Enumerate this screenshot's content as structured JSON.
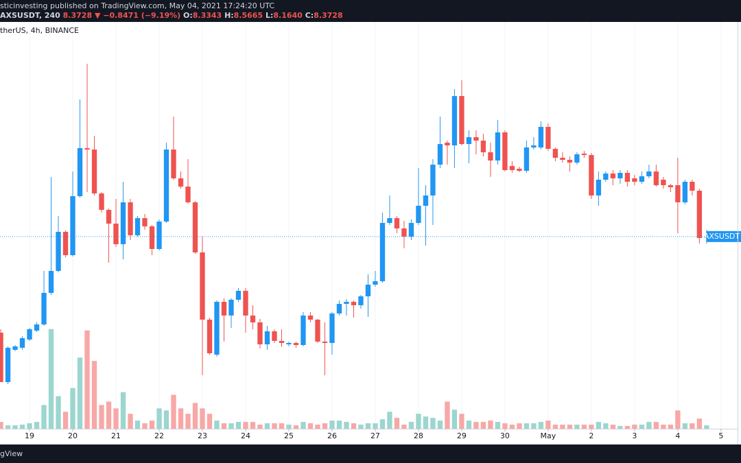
{
  "header": {
    "publisher": "sticinvesting published on TradingView.com, May 04, 2021 17:24:20 UTC",
    "symbol": "AXSUSDT, 240",
    "last": "8.3728",
    "change": "▼ −0.8471 (−9.19%)",
    "ohlc": [
      {
        "k": "O:",
        "v": "8.3343"
      },
      {
        "k": "H:",
        "v": "8.5665"
      },
      {
        "k": "L:",
        "v": "8.1640"
      },
      {
        "k": "C:",
        "v": "8.3728"
      }
    ],
    "source": "therUS, 4h, BINANCE",
    "footer": "gView",
    "price_tag": "AXSUSDT"
  },
  "chart_data": {
    "type": "candlestick",
    "up_color": "#2196f3",
    "down_color": "#ef5350",
    "volume_up_color": "#9bd6cf",
    "volume_down_color": "#f7a8a6",
    "xlim": [
      -0.1,
      102.3
    ],
    "ylim": [
      2.77,
      14.63
    ],
    "volume_ylim": [
      0,
      600
    ],
    "xticks": [
      {
        "value": 4,
        "label": "19"
      },
      {
        "value": 10,
        "label": "20"
      },
      {
        "value": 16,
        "label": "21"
      },
      {
        "value": 22,
        "label": "22"
      },
      {
        "value": 28,
        "label": "23"
      },
      {
        "value": 34,
        "label": "24"
      },
      {
        "value": 40,
        "label": "25"
      },
      {
        "value": 46,
        "label": "26"
      },
      {
        "value": 52,
        "label": "27"
      },
      {
        "value": 58,
        "label": "28"
      },
      {
        "value": 64,
        "label": "29"
      },
      {
        "value": 70,
        "label": "30"
      },
      {
        "value": 76,
        "label": "May"
      },
      {
        "value": 82,
        "label": "2"
      },
      {
        "value": 88,
        "label": "3"
      },
      {
        "value": 94,
        "label": "4"
      },
      {
        "value": 100,
        "label": "5"
      }
    ],
    "open": [
      5.57,
      4.13,
      5.07,
      5.13,
      5.37,
      5.63,
      5.81,
      6.73,
      7.37,
      8.51,
      7.83,
      9.55,
      10.95,
      10.91,
      9.63,
      9.15,
      8.75,
      8.15,
      9.37,
      8.41,
      8.91,
      8.67,
      8.01,
      8.81,
      10.91,
      10.07,
      9.83,
      9.37,
      7.91,
      5.95,
      4.93,
      6.47,
      6.07,
      6.53,
      6.79,
      6.07,
      5.87,
      5.23,
      5.61,
      5.33,
      5.23,
      5.27,
      5.21,
      6.07,
      5.95,
      5.31,
      5.27,
      6.13,
      6.41,
      6.47,
      6.37,
      6.63,
      6.97,
      7.07,
      8.77,
      8.91,
      8.61,
      8.37,
      8.77,
      9.27,
      9.57,
      10.47,
      11.11,
      11.03,
      12.47,
      11.07,
      11.27,
      11.17,
      10.83,
      10.59,
      11.41,
      10.43,
      10.35,
      10.29,
      10.97,
      10.97,
      11.57,
      10.93,
      10.67,
      10.61,
      10.53,
      10.79,
      10.75,
      9.57,
      10.03,
      10.21,
      10.07,
      10.23,
      10.07,
      9.97,
      10.13,
      10.27,
      10.03,
      9.87,
      9.87,
      9.37,
      9.97,
      9.71,
      8.3343
    ],
    "high": [
      5.67,
      5.17,
      5.21,
      5.47,
      5.71,
      5.87,
      7.37,
      10.11,
      8.97,
      8.55,
      10.27,
      12.37,
      13.41,
      11.31,
      9.67,
      9.19,
      9.47,
      9.97,
      9.47,
      8.97,
      9.03,
      8.71,
      8.87,
      11.11,
      11.87,
      10.27,
      10.63,
      9.41,
      8.37,
      6.01,
      6.51,
      6.57,
      6.57,
      6.87,
      6.87,
      6.37,
      5.97,
      5.77,
      5.67,
      5.67,
      5.31,
      5.31,
      6.17,
      6.17,
      5.97,
      5.87,
      6.17,
      6.51,
      6.55,
      6.51,
      6.67,
      7.27,
      7.37,
      9.07,
      9.57,
      8.97,
      8.83,
      8.87,
      10.37,
      9.87,
      10.63,
      11.87,
      11.17,
      12.67,
      12.93,
      11.47,
      11.47,
      11.37,
      11.11,
      11.77,
      11.47,
      10.57,
      10.41,
      11.17,
      11.27,
      11.73,
      11.67,
      10.97,
      10.83,
      10.71,
      10.83,
      10.87,
      10.81,
      10.27,
      10.27,
      10.31,
      10.31,
      10.31,
      10.17,
      10.27,
      10.47,
      10.47,
      10.11,
      9.91,
      10.67,
      10.03,
      10.03,
      9.77,
      8.5665
    ],
    "low": [
      4.13,
      4.07,
      5.03,
      5.07,
      5.33,
      5.59,
      5.77,
      6.67,
      7.33,
      7.77,
      7.79,
      9.51,
      9.67,
      9.57,
      9.07,
      7.61,
      8.07,
      7.71,
      8.27,
      8.37,
      8.57,
      7.83,
      7.97,
      8.77,
      10.03,
      9.77,
      9.33,
      7.87,
      4.33,
      4.93,
      4.87,
      5.31,
      5.71,
      6.47,
      5.57,
      5.67,
      5.11,
      5.07,
      5.27,
      5.15,
      5.17,
      5.13,
      5.17,
      5.87,
      5.27,
      4.33,
      4.93,
      6.07,
      6.07,
      6.01,
      6.27,
      6.03,
      6.91,
      7.03,
      8.71,
      8.47,
      8.03,
      8.27,
      8.71,
      8.11,
      8.71,
      10.37,
      10.47,
      10.37,
      11.03,
      10.51,
      10.77,
      10.71,
      10.11,
      10.47,
      10.27,
      10.23,
      10.25,
      10.23,
      10.91,
      10.91,
      10.87,
      10.57,
      10.53,
      10.27,
      10.47,
      10.67,
      9.47,
      9.27,
      9.97,
      9.87,
      9.91,
      9.83,
      9.87,
      9.91,
      10.07,
      9.83,
      9.77,
      9.67,
      8.47,
      9.31,
      9.57,
      8.17,
      8.164
    ],
    "close": [
      4.13,
      5.13,
      5.17,
      5.41,
      5.67,
      5.81,
      6.73,
      7.37,
      8.51,
      7.83,
      9.55,
      10.95,
      10.91,
      9.63,
      9.15,
      8.75,
      8.15,
      9.37,
      8.41,
      8.91,
      8.67,
      8.01,
      8.81,
      10.91,
      10.07,
      9.83,
      9.37,
      7.91,
      5.95,
      4.97,
      6.47,
      6.07,
      6.53,
      6.79,
      6.07,
      5.87,
      5.23,
      5.61,
      5.33,
      5.27,
      5.27,
      5.21,
      6.07,
      5.95,
      5.31,
      5.27,
      6.13,
      6.41,
      6.47,
      6.37,
      6.63,
      6.97,
      7.07,
      8.77,
      8.91,
      8.61,
      8.37,
      8.77,
      9.27,
      9.57,
      10.47,
      11.07,
      11.03,
      12.47,
      11.07,
      11.27,
      11.17,
      10.83,
      10.59,
      11.41,
      10.31,
      10.31,
      10.29,
      10.97,
      11.03,
      11.57,
      10.93,
      10.67,
      10.61,
      10.53,
      10.77,
      10.75,
      9.57,
      10.03,
      10.21,
      10.07,
      10.23,
      9.97,
      9.97,
      10.13,
      10.27,
      9.87,
      9.87,
      9.81,
      9.37,
      9.97,
      9.71,
      8.33,
      8.3728
    ],
    "volume": [
      10,
      5,
      5,
      6,
      8,
      10,
      35,
      147,
      48,
      25,
      60,
      105,
      145,
      100,
      35,
      40,
      30,
      54,
      22,
      12,
      8,
      12,
      30,
      27,
      50,
      30,
      22,
      38,
      30,
      22,
      12,
      8,
      8,
      10,
      10,
      10,
      6,
      8,
      8,
      8,
      6,
      5,
      10,
      8,
      6,
      8,
      12,
      12,
      10,
      8,
      6,
      8,
      8,
      14,
      25,
      16,
      6,
      10,
      22,
      18,
      16,
      12,
      40,
      28,
      22,
      12,
      10,
      10,
      12,
      10,
      8,
      6,
      8,
      8,
      8,
      10,
      12,
      6,
      6,
      6,
      6,
      6,
      6,
      10,
      8,
      6,
      4,
      4,
      6,
      6,
      10,
      10,
      6,
      6,
      27,
      8,
      8,
      15,
      5
    ]
  }
}
